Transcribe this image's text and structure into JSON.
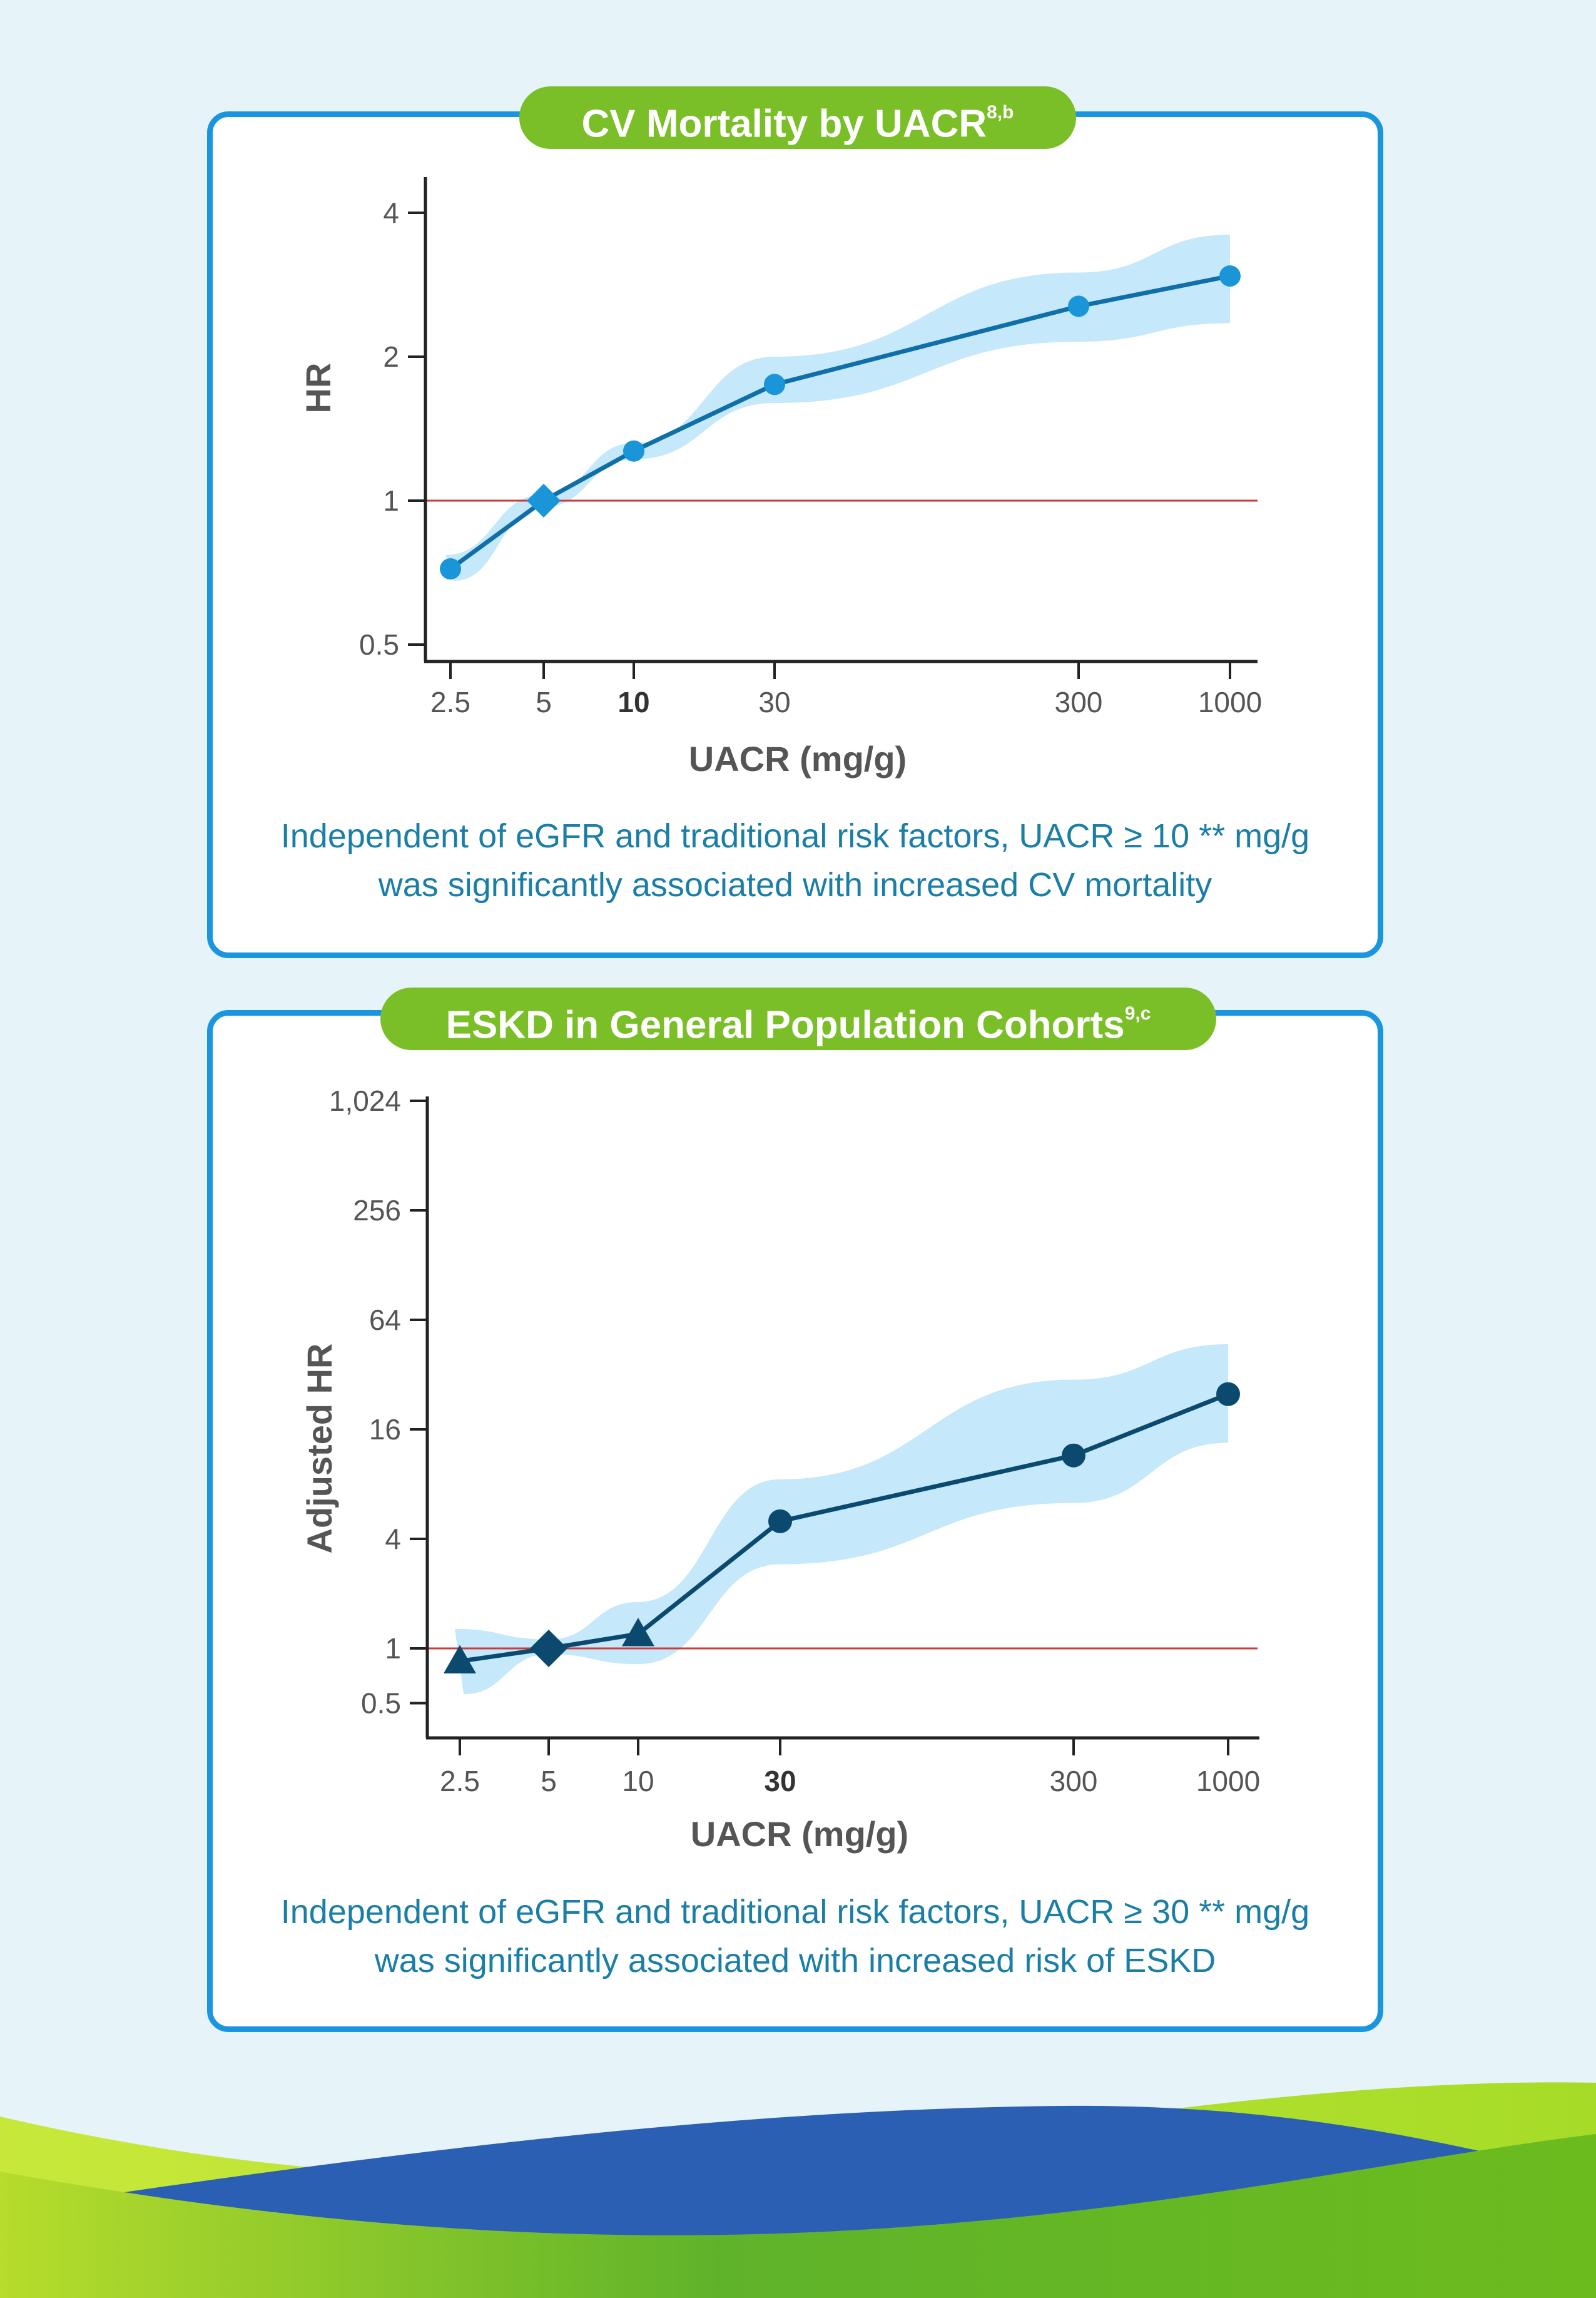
{
  "charts": {
    "cv": {
      "title_main": "CV Mortality by UACR",
      "title_sup": "8,b",
      "caption_line1": "Independent of eGFR and traditional risk factors, UACR ≥ 10 ** mg/g",
      "caption_line2": "was significantly associated with increased CV mortality"
    },
    "eskd": {
      "title_main": "ESKD in General Population Cohorts",
      "title_sup": "9,c",
      "caption_line1": "Independent of eGFR and traditional risk factors, UACR ≥ 30 ** mg/g",
      "caption_line2": "was significantly associated with increased risk of ESKD"
    }
  },
  "colors": {
    "panel_border": "#1a96e0",
    "title_pill": "#7abf27",
    "caption": "#1a7ea7",
    "cv_series": "#1a96d8",
    "cv_line": "#0f6fa8",
    "eskd_series": "#0b4a6e",
    "band": "#c5e8fa",
    "reference_line": "#cc3a3a"
  },
  "icons": {
    "reference_marker": "diamond-icon",
    "cv_marker": "circle-icon",
    "eskd_low_marker": "triangle-icon",
    "eskd_high_marker": "circle-icon"
  },
  "chart_data": [
    {
      "id": "cv",
      "type": "line",
      "title": "CV Mortality by UACR",
      "xlabel": "UACR (mg/g)",
      "ylabel": "HR",
      "x_scale": "log",
      "y_scale": "log",
      "xticks": [
        "2.5",
        "5",
        "10",
        "30",
        "300",
        "1000"
      ],
      "xtick_bold": "10",
      "yticks": [
        "0.5",
        "1",
        "2",
        "4"
      ],
      "ylim": [
        0.5,
        4
      ],
      "reference_y": 1,
      "grid": false,
      "x": [
        2.5,
        5,
        10,
        30,
        300,
        1000
      ],
      "y": [
        0.72,
        1.0,
        1.27,
        1.75,
        2.55,
        2.95
      ],
      "markers": [
        "circle",
        "diamond",
        "circle",
        "circle",
        "circle",
        "circle"
      ],
      "ci_upper": [
        0.77,
        1.03,
        1.32,
        2.0,
        3.0,
        3.6
      ],
      "ci_lower": [
        0.68,
        0.97,
        1.22,
        1.6,
        2.15,
        2.35
      ]
    },
    {
      "id": "eskd",
      "type": "line",
      "title": "ESKD in General Population Cohorts",
      "xlabel": "UACR (mg/g)",
      "ylabel": "Adjusted HR",
      "x_scale": "log",
      "y_scale": "log",
      "xticks": [
        "2.5",
        "5",
        "10",
        "30",
        "300",
        "1000"
      ],
      "xtick_bold": "30",
      "yticks": [
        "0.5",
        "1",
        "4",
        "16",
        "64",
        "256",
        "1,024"
      ],
      "ylim": [
        0.5,
        1024
      ],
      "reference_y": 1,
      "grid": false,
      "x": [
        2.5,
        5,
        10,
        30,
        300,
        1000
      ],
      "y": [
        0.85,
        1.0,
        1.2,
        5.0,
        11.5,
        25.0
      ],
      "markers": [
        "triangle",
        "diamond",
        "triangle",
        "circle",
        "circle",
        "circle"
      ],
      "ci_upper": [
        1.28,
        1.12,
        1.8,
        8.5,
        30,
        47
      ],
      "ci_lower": [
        0.56,
        0.93,
        0.82,
        2.9,
        6.3,
        13.5
      ]
    }
  ]
}
